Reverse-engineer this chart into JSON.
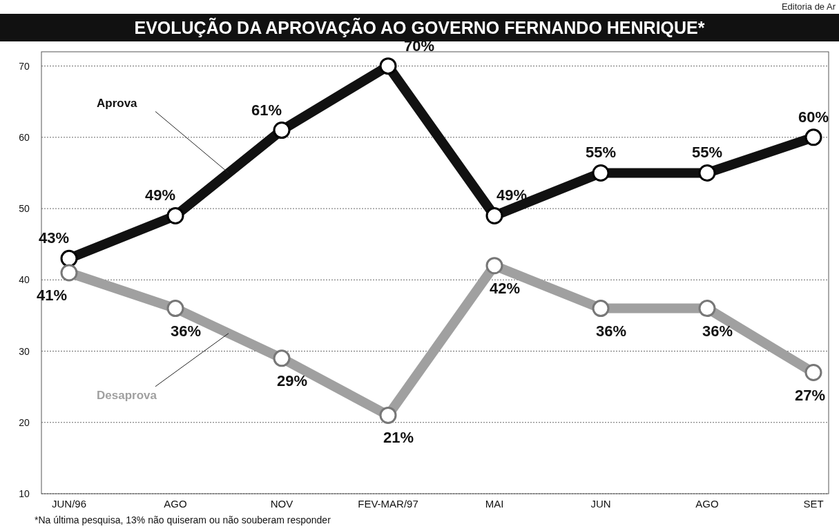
{
  "chart_data": {
    "type": "line",
    "title": "EVOLUÇÃO DA APROVAÇÃO AO GOVERNO FERNANDO HENRIQUE*",
    "categories": [
      "JUN/96",
      "AGO",
      "NOV",
      "FEV-MAR/97",
      "MAI",
      "JUN",
      "AGO",
      "SET"
    ],
    "series": [
      {
        "name": "Aprova",
        "color": "#111111",
        "values": [
          43,
          49,
          61,
          70,
          49,
          55,
          55,
          60
        ],
        "value_labels": [
          "43%",
          "49%",
          "61%",
          "70%",
          "49%",
          "55%",
          "55%",
          "60%"
        ]
      },
      {
        "name": "Desaprova",
        "color": "#a0a0a0",
        "values": [
          41,
          36,
          29,
          21,
          42,
          36,
          36,
          27
        ],
        "value_labels": [
          "41%",
          "36%",
          "29%",
          "21%",
          "42%",
          "36%",
          "36%",
          "27%"
        ]
      }
    ],
    "ylim": [
      10,
      72
    ],
    "yticks": [
      10,
      20,
      30,
      40,
      50,
      60,
      70
    ],
    "grid": "y",
    "marker": "circle",
    "line_style": "solid",
    "legend": false,
    "annotations": [
      "*Na última pesquisa, 13% não quiseram ou não souberam responder",
      "Editoria de Ar"
    ]
  }
}
